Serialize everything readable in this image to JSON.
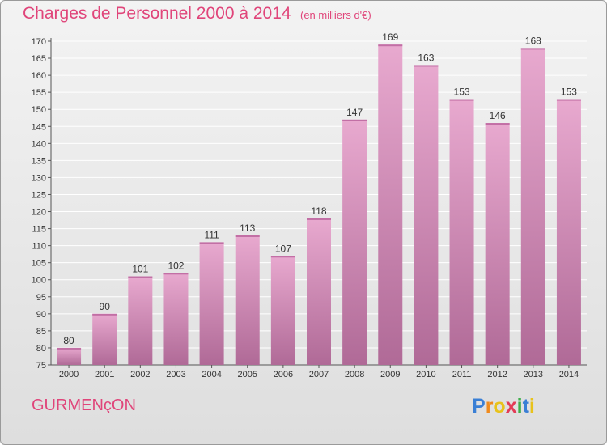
{
  "title": "Charges de Personnel 2000 à 2014",
  "subtitle": "(en milliers d'€)",
  "commune": "GURMENçON",
  "logo": {
    "letters": [
      "P",
      "r",
      "o",
      "x",
      "i",
      "t",
      "i"
    ],
    "colors": [
      "#3a7fd5",
      "#f08a1c",
      "#e8c21b",
      "#e33b56",
      "#3fae4a",
      "#3a7fd5",
      "#e8c21b"
    ]
  },
  "colors": {
    "accent": "#e0457a",
    "bar_top": "#e8a9cf",
    "bar_bottom": "#b06a97"
  },
  "chart_data": {
    "type": "bar",
    "categories": [
      "2000",
      "2001",
      "2002",
      "2003",
      "2004",
      "2005",
      "2006",
      "2007",
      "2008",
      "2009",
      "2010",
      "2011",
      "2012",
      "2013",
      "2014"
    ],
    "values": [
      80,
      90,
      101,
      102,
      111,
      113,
      107,
      118,
      147,
      169,
      163,
      153,
      146,
      168,
      153
    ],
    "title": "Charges de Personnel 2000 à 2014",
    "ylim": [
      75,
      170
    ],
    "yticks": [
      75,
      80,
      85,
      90,
      95,
      100,
      105,
      110,
      115,
      120,
      125,
      130,
      135,
      140,
      145,
      150,
      155,
      160,
      165,
      170
    ],
    "grid": true
  }
}
